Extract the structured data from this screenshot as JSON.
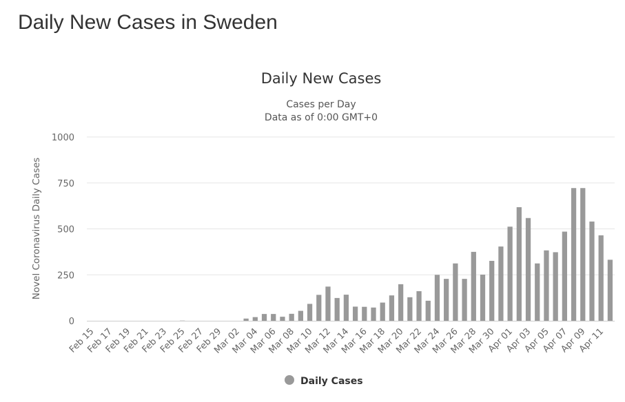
{
  "page": {
    "title": "Daily New Cases in Sweden"
  },
  "chart_data": {
    "type": "bar",
    "title": "Daily New Cases",
    "subtitle_lines": [
      "Cases per Day",
      "Data as of 0:00 GMT+0"
    ],
    "ylabel": "Novel Coronavirus Daily Cases",
    "xlabel": "",
    "ylim": [
      0,
      1000
    ],
    "yticks": [
      "0",
      "250",
      "500",
      "750",
      "1000"
    ],
    "grid": true,
    "legend_position": "bottom-center",
    "bar_color": "#999999",
    "categories": [
      "Feb 15",
      "Feb 16",
      "Feb 17",
      "Feb 18",
      "Feb 19",
      "Feb 20",
      "Feb 21",
      "Feb 22",
      "Feb 23",
      "Feb 24",
      "Feb 25",
      "Feb 26",
      "Feb 27",
      "Feb 28",
      "Feb 29",
      "Mar 01",
      "Mar 02",
      "Mar 03",
      "Mar 04",
      "Mar 05",
      "Mar 06",
      "Mar 07",
      "Mar 08",
      "Mar 09",
      "Mar 10",
      "Mar 11",
      "Mar 12",
      "Mar 13",
      "Mar 14",
      "Mar 15",
      "Mar 16",
      "Mar 17",
      "Mar 18",
      "Mar 19",
      "Mar 20",
      "Mar 21",
      "Mar 22",
      "Mar 23",
      "Mar 24",
      "Mar 25",
      "Mar 26",
      "Mar 27",
      "Mar 28",
      "Mar 29",
      "Mar 30",
      "Mar 31",
      "Apr 01",
      "Apr 02",
      "Apr 03",
      "Apr 04",
      "Apr 05",
      "Apr 06",
      "Apr 07",
      "Apr 08",
      "Apr 09",
      "Apr 10",
      "Apr 11",
      "Apr 12"
    ],
    "tick_labels": [
      "Feb 15",
      "Feb 17",
      "Feb 19",
      "Feb 21",
      "Feb 23",
      "Feb 25",
      "Feb 27",
      "Feb 29",
      "Mar 02",
      "Mar 04",
      "Mar 06",
      "Mar 08",
      "Mar 10",
      "Mar 12",
      "Mar 14",
      "Mar 16",
      "Mar 18",
      "Mar 20",
      "Mar 22",
      "Mar 24",
      "Mar 26",
      "Mar 28",
      "Mar 30",
      "Apr 01",
      "Apr 03",
      "Apr 05",
      "Apr 07",
      "Apr 09",
      "Apr 11"
    ],
    "series": [
      {
        "name": "Daily Cases",
        "values": [
          0,
          0,
          0,
          0,
          0,
          0,
          0,
          0,
          0,
          0,
          1,
          0,
          0,
          0,
          0,
          0,
          0,
          12,
          20,
          37,
          37,
          22,
          38,
          54,
          92,
          141,
          186,
          124,
          142,
          77,
          76,
          72,
          99,
          138,
          199,
          128,
          161,
          109,
          250,
          228,
          312,
          228,
          375,
          251,
          326,
          404,
          512,
          618,
          559,
          312,
          383,
          373,
          485,
          722,
          722,
          540,
          465,
          332
        ]
      }
    ]
  }
}
